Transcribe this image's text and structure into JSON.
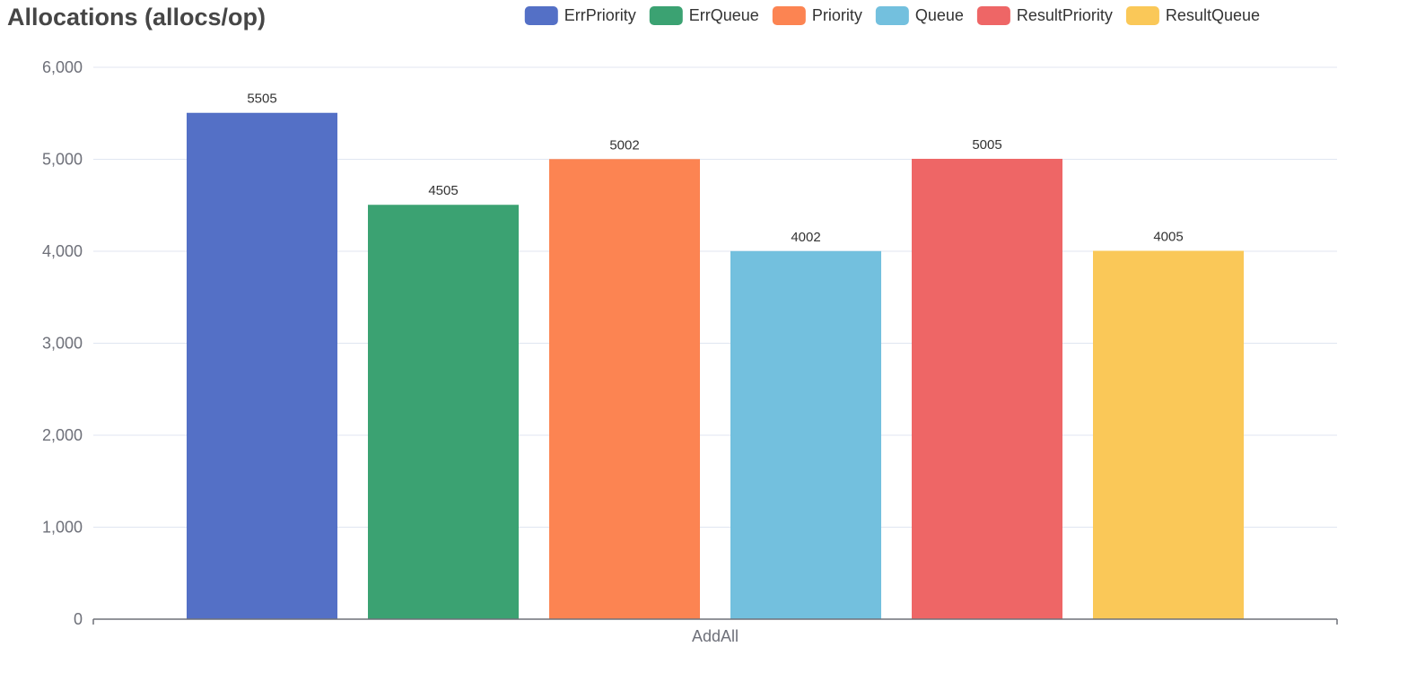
{
  "chart_data": {
    "type": "bar",
    "title": "Allocations (allocs/op)",
    "categories": [
      "AddAll"
    ],
    "series": [
      {
        "name": "ErrPriority",
        "values": [
          5505
        ],
        "color": "#5470c6"
      },
      {
        "name": "ErrQueue",
        "values": [
          4505
        ],
        "color": "#3ba272"
      },
      {
        "name": "Priority",
        "values": [
          5002
        ],
        "color": "#fc8452"
      },
      {
        "name": "Queue",
        "values": [
          4002
        ],
        "color": "#73c0de"
      },
      {
        "name": "ResultPriority",
        "values": [
          5005
        ],
        "color": "#ee6666"
      },
      {
        "name": "ResultQueue",
        "values": [
          4005
        ],
        "color": "#fac858"
      }
    ],
    "y_ticks": [
      "0",
      "1,000",
      "2,000",
      "3,000",
      "4,000",
      "5,000",
      "6,000"
    ],
    "ylim": [
      0,
      6000
    ],
    "grid": true,
    "legend_position": "top-right",
    "xlabel": "",
    "ylabel": ""
  }
}
